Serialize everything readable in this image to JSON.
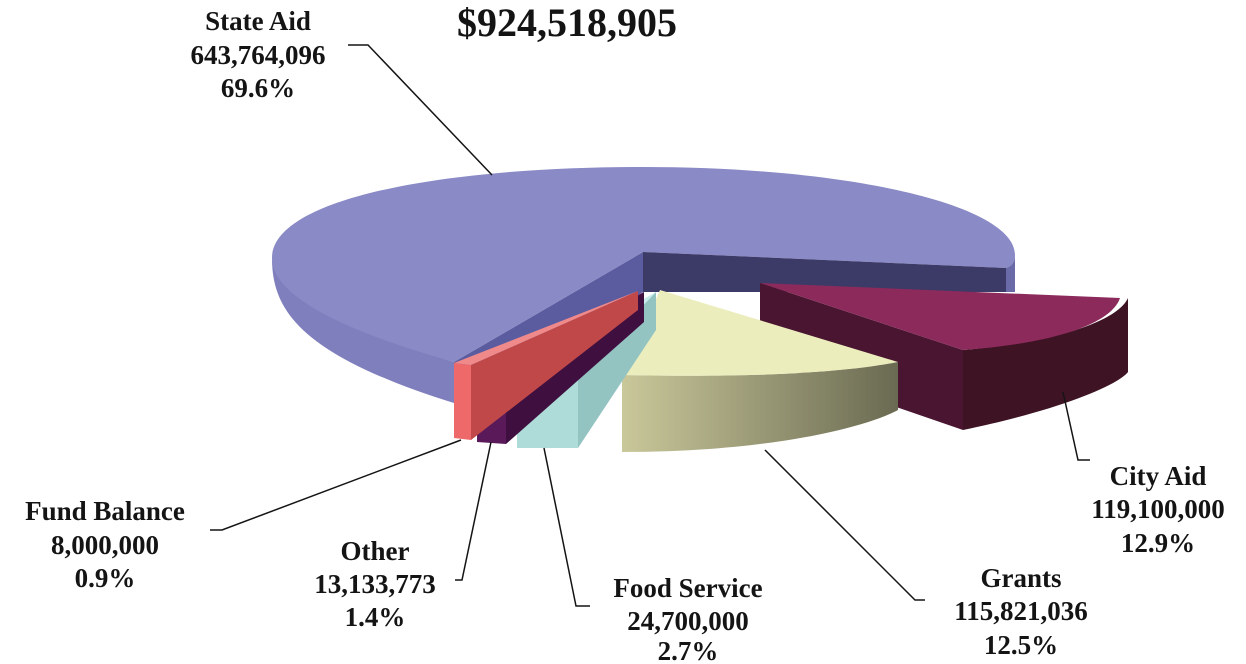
{
  "chart_data": {
    "type": "pie",
    "title": "$924,518,905",
    "total": 924518905,
    "slices": [
      {
        "name": "State Aid",
        "value": 643764096,
        "value_label": "643,764,096",
        "percent_label": "69.6%",
        "color": "#8a8ac6"
      },
      {
        "name": "City Aid",
        "value": 119100000,
        "value_label": "119,100,000",
        "percent_label": "12.9%",
        "color": "#8c2a5c"
      },
      {
        "name": "Grants",
        "value": 115821036,
        "value_label": "115,821,036",
        "percent_label": "12.5%",
        "color": "#ecedbd"
      },
      {
        "name": "Food Service",
        "value": 24700000,
        "value_label": "24,700,000",
        "percent_label": "2.7%",
        "color": "#b8e2e2"
      },
      {
        "name": "Other",
        "value": 13133773,
        "value_label": "13,133,773",
        "percent_label": "1.4%",
        "color": "#5a1a5a"
      },
      {
        "name": "Fund Balance",
        "value": 8000000,
        "value_label": "8,000,000",
        "percent_label": "0.9%",
        "color": "#ee6a6a"
      }
    ],
    "legend": "none",
    "style": "3d-exploded"
  }
}
